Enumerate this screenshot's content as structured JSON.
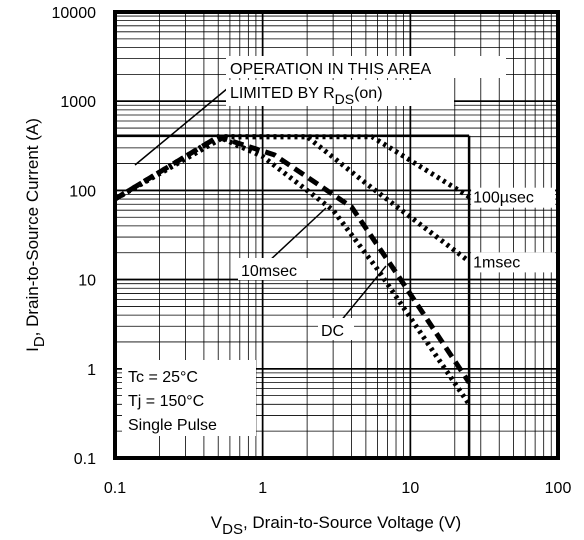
{
  "chart_data": {
    "type": "line",
    "x_scale": "log",
    "y_scale": "log",
    "xlim": [
      0.1,
      100
    ],
    "ylim": [
      0.1,
      10000
    ],
    "grid": true,
    "x_tick_labels": [
      "0.1",
      "1",
      "10",
      "100"
    ],
    "y_tick_labels": [
      "0.1",
      "1",
      "10",
      "100",
      "1000",
      "10000"
    ],
    "xlabel": {
      "main": "V",
      "sub": "DS",
      "rest": ", Drain-to-Source Voltage (V)"
    },
    "ylabel": {
      "main": "I",
      "sub": "D",
      "rest": ",  Drain-to-Source Current (A)"
    },
    "limits": {
      "current_A": 410,
      "voltage_V": 25
    },
    "annotation_limit": {
      "line1": "OPERATION IN THIS AREA",
      "line2_main": "LIMITED BY R",
      "line2_sub": "DS",
      "line2_rest": "(on)"
    },
    "conditions": [
      "Tc = 25°C",
      "Tj = 150°C",
      "Single Pulse"
    ],
    "series": [
      {
        "name": "100µsec",
        "style": "dotted",
        "points": [
          [
            0.1,
            80
          ],
          [
            0.55,
            400
          ],
          [
            5.5,
            400
          ],
          [
            25,
            85
          ]
        ]
      },
      {
        "name": "1msec",
        "style": "dotted",
        "points": [
          [
            0.1,
            80
          ],
          [
            0.55,
            400
          ],
          [
            2.0,
            400
          ],
          [
            5.0,
            120
          ],
          [
            25,
            16
          ]
        ]
      },
      {
        "name": "10msec",
        "style": "dashed",
        "points": [
          [
            0.1,
            80
          ],
          [
            0.5,
            400
          ],
          [
            1.2,
            250
          ],
          [
            4.0,
            65
          ],
          [
            8.0,
            12
          ],
          [
            25,
            0.7
          ]
        ]
      },
      {
        "name": "DC",
        "style": "dotted",
        "points": [
          [
            0.1,
            80
          ],
          [
            0.5,
            400
          ],
          [
            1.0,
            240
          ],
          [
            3.0,
            60
          ],
          [
            6.0,
            13
          ],
          [
            25,
            0.4
          ]
        ]
      }
    ],
    "label_10msec": "10msec",
    "label_dc": "DC"
  }
}
